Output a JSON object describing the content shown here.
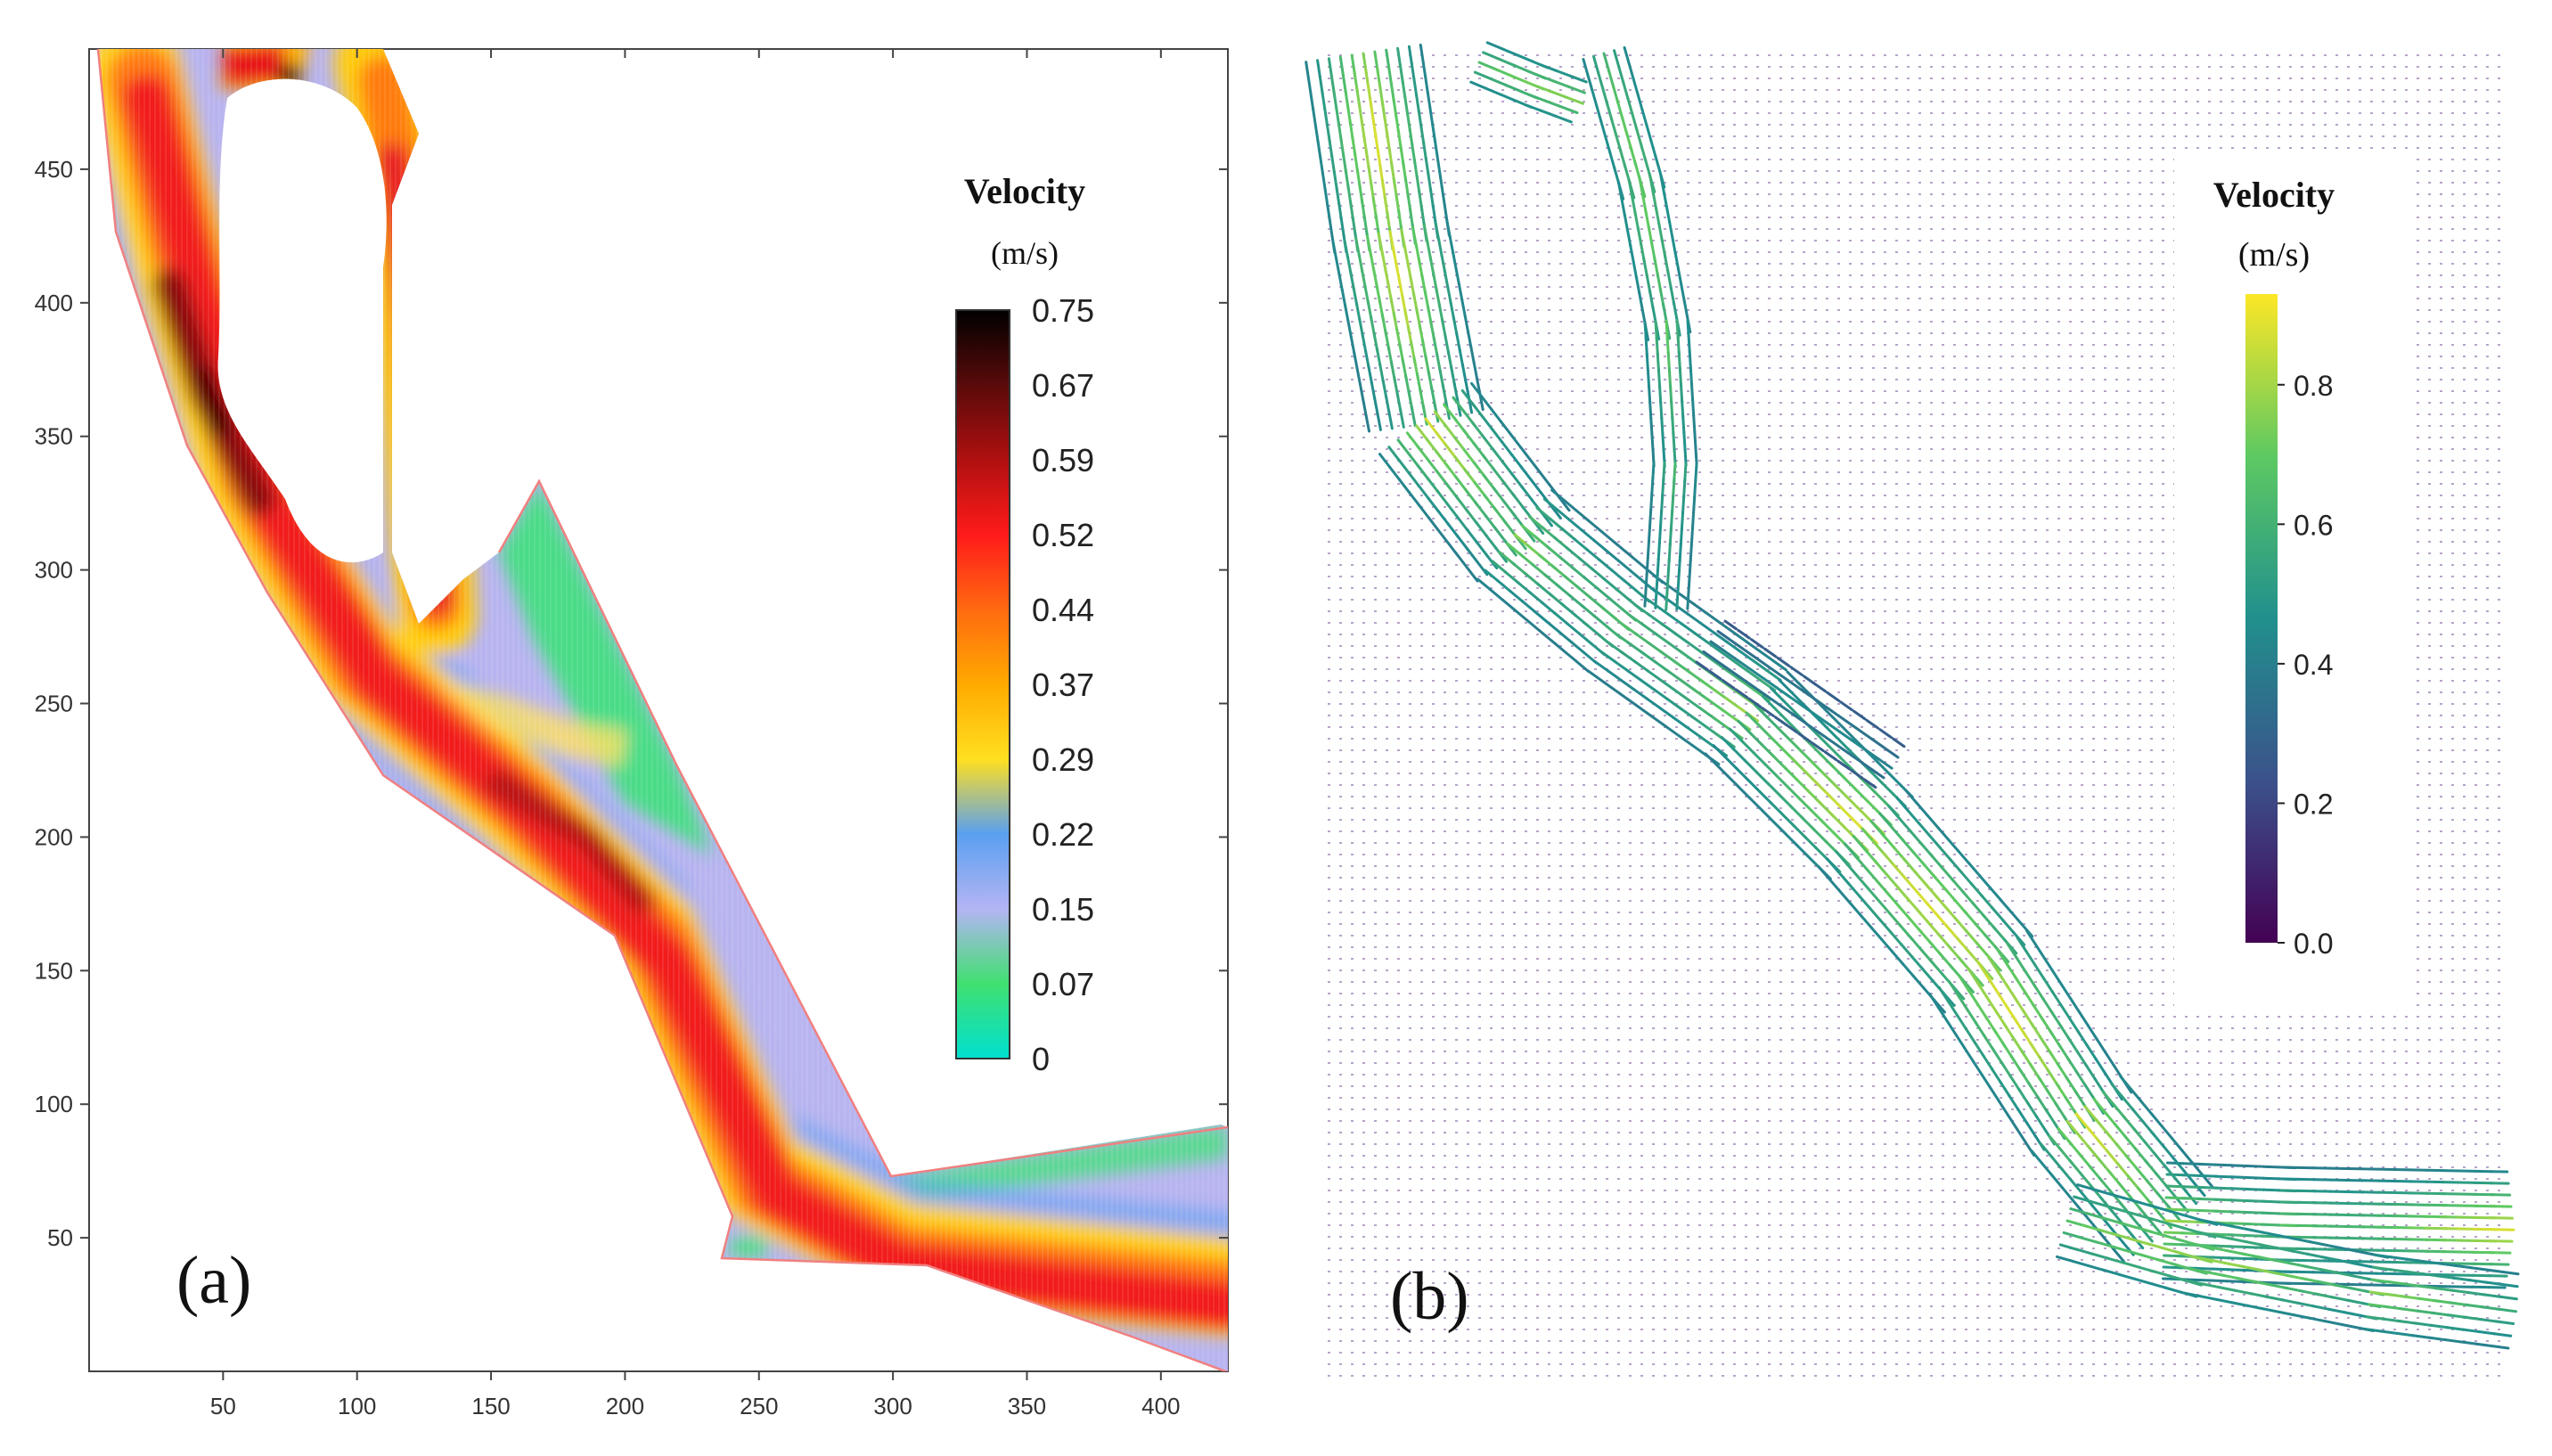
{
  "chart_data": [
    {
      "type": "heatmap",
      "panel_label": "(a)",
      "title": "",
      "xlabel": "",
      "ylabel": "",
      "xlim": [
        0,
        425
      ],
      "ylim": [
        0,
        495
      ],
      "xticks": [
        50,
        100,
        150,
        200,
        250,
        300,
        350,
        400
      ],
      "yticks": [
        50,
        100,
        150,
        200,
        250,
        300,
        350,
        400,
        450
      ],
      "colorbar": {
        "title": "Velocity",
        "units": "(m/s)",
        "ticks": [
          "0.75",
          "0.67",
          "0.59",
          "0.52",
          "0.44",
          "0.37",
          "0.29",
          "0.22",
          "0.15",
          "0.07",
          "0"
        ],
        "stops": [
          "#000000",
          "#5a0a0a",
          "#b01010",
          "#ff1a1a",
          "#ff6a10",
          "#ffaa00",
          "#ffe020",
          "#5aa0f0",
          "#b4b4f4",
          "#40e070",
          "#00e0d0"
        ]
      }
    },
    {
      "type": "vector_field",
      "panel_label": "(b)",
      "title": "",
      "colorbar": {
        "title": "Velocity",
        "units": "(m/s)",
        "ticks": [
          "0.8",
          "0.6",
          "0.4",
          "0.2",
          "0.0"
        ],
        "tick_values": [
          0.8,
          0.6,
          0.4,
          0.2,
          0.0
        ],
        "range": [
          0,
          0.93
        ],
        "stops": [
          "#440154",
          "#3b528b",
          "#21908d",
          "#5dc962",
          "#fde725"
        ]
      }
    }
  ],
  "colors": {
    "mask_white": "#ffffff",
    "boundary": "#f08080",
    "grid_dot": "#b7a3c9"
  }
}
